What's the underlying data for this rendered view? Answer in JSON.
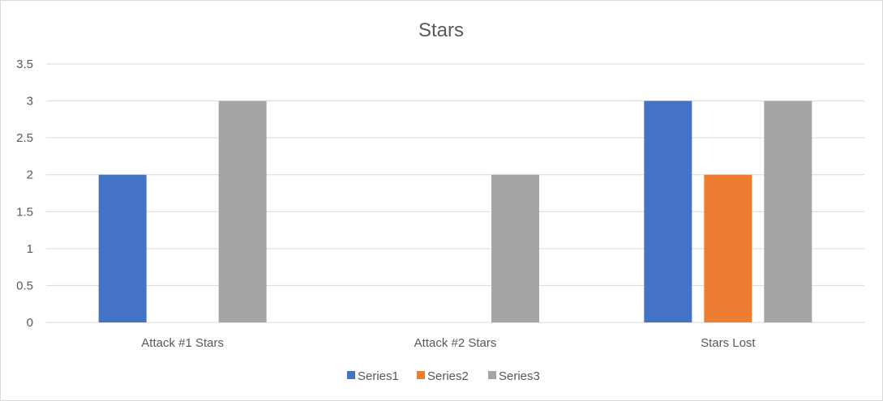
{
  "chart_data": {
    "type": "bar",
    "title": "Stars",
    "xlabel": "",
    "ylabel": "",
    "categories": [
      "Attack #1 Stars",
      "Attack #2 Stars",
      "Stars Lost"
    ],
    "series": [
      {
        "name": "Series1",
        "values": [
          2,
          0,
          3
        ],
        "color": "#4472c4"
      },
      {
        "name": "Series2",
        "values": [
          0,
          0,
          2
        ],
        "color": "#ed7d31"
      },
      {
        "name": "Series3",
        "values": [
          3,
          2,
          3
        ],
        "color": "#a5a5a5"
      }
    ],
    "ylim": [
      0,
      3.5
    ],
    "yticks": [
      "0",
      "0.5",
      "1",
      "1.5",
      "2",
      "2.5",
      "3",
      "3.5"
    ],
    "grid": true,
    "legend_position": "bottom"
  }
}
